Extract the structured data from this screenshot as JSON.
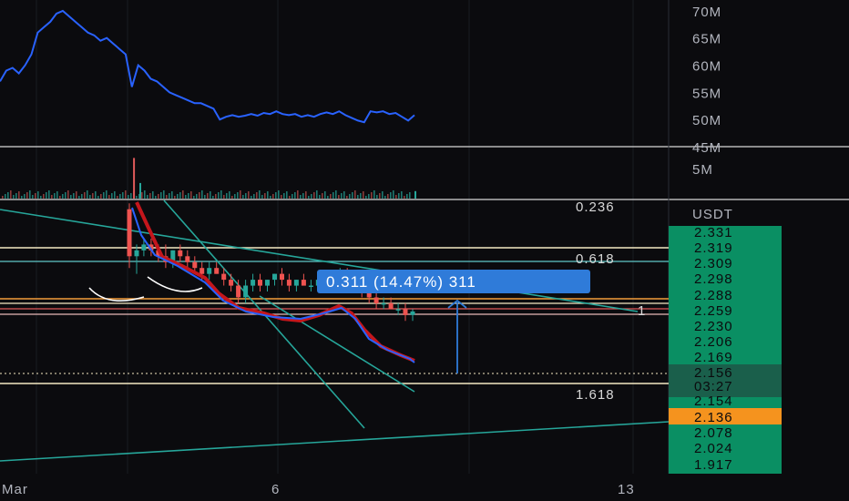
{
  "chart_data": {
    "type": "candlestick",
    "symbol_unit": "USDT",
    "x_ticks": [
      "Mar",
      "6",
      "13"
    ],
    "panes": {
      "open_interest": {
        "y_ticks": [
          "70M",
          "65M",
          "60M",
          "55M",
          "50M",
          "45M"
        ],
        "ylim": [
          45,
          72
        ],
        "unit": "M",
        "series": [
          {
            "t": 0,
            "v": 57
          },
          {
            "t": 1,
            "v": 59
          },
          {
            "t": 2,
            "v": 59.5
          },
          {
            "t": 3,
            "v": 58.5
          },
          {
            "t": 4,
            "v": 60
          },
          {
            "t": 5,
            "v": 62
          },
          {
            "t": 6,
            "v": 66
          },
          {
            "t": 7,
            "v": 67
          },
          {
            "t": 8,
            "v": 68
          },
          {
            "t": 9,
            "v": 69.5
          },
          {
            "t": 10,
            "v": 70
          },
          {
            "t": 11,
            "v": 69
          },
          {
            "t": 12,
            "v": 68
          },
          {
            "t": 13,
            "v": 67
          },
          {
            "t": 14,
            "v": 66
          },
          {
            "t": 15,
            "v": 65.5
          },
          {
            "t": 16,
            "v": 64.5
          },
          {
            "t": 17,
            "v": 65
          },
          {
            "t": 18,
            "v": 64
          },
          {
            "t": 19,
            "v": 63
          },
          {
            "t": 20,
            "v": 62
          },
          {
            "t": 21,
            "v": 56
          },
          {
            "t": 22,
            "v": 60
          },
          {
            "t": 23,
            "v": 59
          },
          {
            "t": 24,
            "v": 57.5
          },
          {
            "t": 25,
            "v": 57
          },
          {
            "t": 26,
            "v": 56
          },
          {
            "t": 27,
            "v": 55
          },
          {
            "t": 28,
            "v": 54.5
          },
          {
            "t": 29,
            "v": 54
          },
          {
            "t": 30,
            "v": 53.5
          },
          {
            "t": 31,
            "v": 53
          },
          {
            "t": 32,
            "v": 53
          },
          {
            "t": 33,
            "v": 52.5
          },
          {
            "t": 34,
            "v": 52
          },
          {
            "t": 35,
            "v": 50
          },
          {
            "t": 36,
            "v": 50.5
          },
          {
            "t": 37,
            "v": 50.8
          },
          {
            "t": 38,
            "v": 50.5
          },
          {
            "t": 39,
            "v": 50.7
          },
          {
            "t": 40,
            "v": 51
          },
          {
            "t": 41,
            "v": 50.7
          },
          {
            "t": 42,
            "v": 51.2
          },
          {
            "t": 43,
            "v": 51
          },
          {
            "t": 44,
            "v": 51.5
          },
          {
            "t": 45,
            "v": 51
          },
          {
            "t": 46,
            "v": 50.8
          },
          {
            "t": 47,
            "v": 51
          },
          {
            "t": 48,
            "v": 50.5
          },
          {
            "t": 49,
            "v": 50.8
          },
          {
            "t": 50,
            "v": 50.5
          },
          {
            "t": 51,
            "v": 51
          },
          {
            "t": 52,
            "v": 51.3
          },
          {
            "t": 53,
            "v": 51
          },
          {
            "t": 54,
            "v": 51.5
          },
          {
            "t": 55,
            "v": 50.8
          },
          {
            "t": 56,
            "v": 50.3
          },
          {
            "t": 57,
            "v": 49.8
          },
          {
            "t": 58,
            "v": 49.5
          },
          {
            "t": 59,
            "v": 51.5
          },
          {
            "t": 60,
            "v": 51.3
          },
          {
            "t": 61,
            "v": 51.5
          },
          {
            "t": 62,
            "v": 51
          },
          {
            "t": 63,
            "v": 51.2
          },
          {
            "t": 64,
            "v": 50.5
          },
          {
            "t": 65,
            "v": 49.8
          },
          {
            "t": 66,
            "v": 50.8
          }
        ]
      },
      "volume": {
        "y_ticks": [
          "5M"
        ],
        "ylim": [
          0,
          7
        ],
        "unit": "M",
        "spikes": [
          {
            "t": 21,
            "v": 6.5,
            "color": "red"
          },
          {
            "t": 22,
            "v": 2.5,
            "color": "green"
          },
          {
            "t": 66,
            "v": 1.2,
            "color": "green"
          }
        ]
      },
      "price": {
        "ylim": [
          1.88,
          2.345
        ],
        "y_labels": [
          "2.331",
          "2.319",
          "2.309",
          "2.298",
          "2.288",
          "2.259",
          "2.230",
          "2.206",
          "2.169",
          "2.156",
          "03:27",
          "2.154",
          "2.136",
          "2.078",
          "2.024",
          "1.917"
        ],
        "last_price": "2.156",
        "countdown": "03:27",
        "highlight_price": "2.136",
        "fib_labels": [
          "0.236",
          "0.618",
          "1",
          "1.618"
        ],
        "measure_label": "0.311 (14.47%) 311",
        "candles_ohlc": [
          [
            2.33,
            2.34,
            2.23,
            2.25
          ],
          [
            2.25,
            2.27,
            2.22,
            2.26
          ],
          [
            2.26,
            2.28,
            2.25,
            2.27
          ],
          [
            2.27,
            2.28,
            2.25,
            2.26
          ],
          [
            2.26,
            2.27,
            2.24,
            2.25
          ],
          [
            2.25,
            2.27,
            2.23,
            2.24
          ],
          [
            2.24,
            2.26,
            2.23,
            2.26
          ],
          [
            2.26,
            2.27,
            2.24,
            2.25
          ],
          [
            2.25,
            2.26,
            2.23,
            2.24
          ],
          [
            2.24,
            2.25,
            2.22,
            2.23
          ],
          [
            2.23,
            2.24,
            2.21,
            2.22
          ],
          [
            2.22,
            2.24,
            2.21,
            2.23
          ],
          [
            2.23,
            2.24,
            2.22,
            2.22
          ],
          [
            2.22,
            2.23,
            2.2,
            2.21
          ],
          [
            2.21,
            2.22,
            2.19,
            2.2
          ],
          [
            2.2,
            2.21,
            2.17,
            2.18
          ],
          [
            2.18,
            2.21,
            2.17,
            2.2
          ],
          [
            2.2,
            2.22,
            2.19,
            2.21
          ],
          [
            2.21,
            2.22,
            2.19,
            2.2
          ],
          [
            2.2,
            2.21,
            2.19,
            2.21
          ],
          [
            2.21,
            2.22,
            2.2,
            2.22
          ],
          [
            2.22,
            2.23,
            2.2,
            2.21
          ],
          [
            2.21,
            2.22,
            2.19,
            2.2
          ],
          [
            2.2,
            2.21,
            2.19,
            2.21
          ],
          [
            2.21,
            2.22,
            2.2,
            2.2
          ],
          [
            2.2,
            2.21,
            2.19,
            2.2
          ],
          [
            2.2,
            2.21,
            2.19,
            2.21
          ],
          [
            2.21,
            2.22,
            2.2,
            2.21
          ],
          [
            2.21,
            2.22,
            2.2,
            2.22
          ],
          [
            2.22,
            2.23,
            2.21,
            2.22
          ],
          [
            2.22,
            2.23,
            2.21,
            2.21
          ],
          [
            2.21,
            2.22,
            2.19,
            2.2
          ],
          [
            2.2,
            2.21,
            2.18,
            2.19
          ],
          [
            2.19,
            2.2,
            2.17,
            2.18
          ],
          [
            2.18,
            2.19,
            2.16,
            2.17
          ],
          [
            2.17,
            2.18,
            2.16,
            2.17
          ],
          [
            2.17,
            2.18,
            2.16,
            2.16
          ],
          [
            2.16,
            2.17,
            2.15,
            2.16
          ],
          [
            2.16,
            2.17,
            2.14,
            2.15
          ],
          [
            2.15,
            2.16,
            2.14,
            2.156
          ]
        ]
      }
    }
  }
}
